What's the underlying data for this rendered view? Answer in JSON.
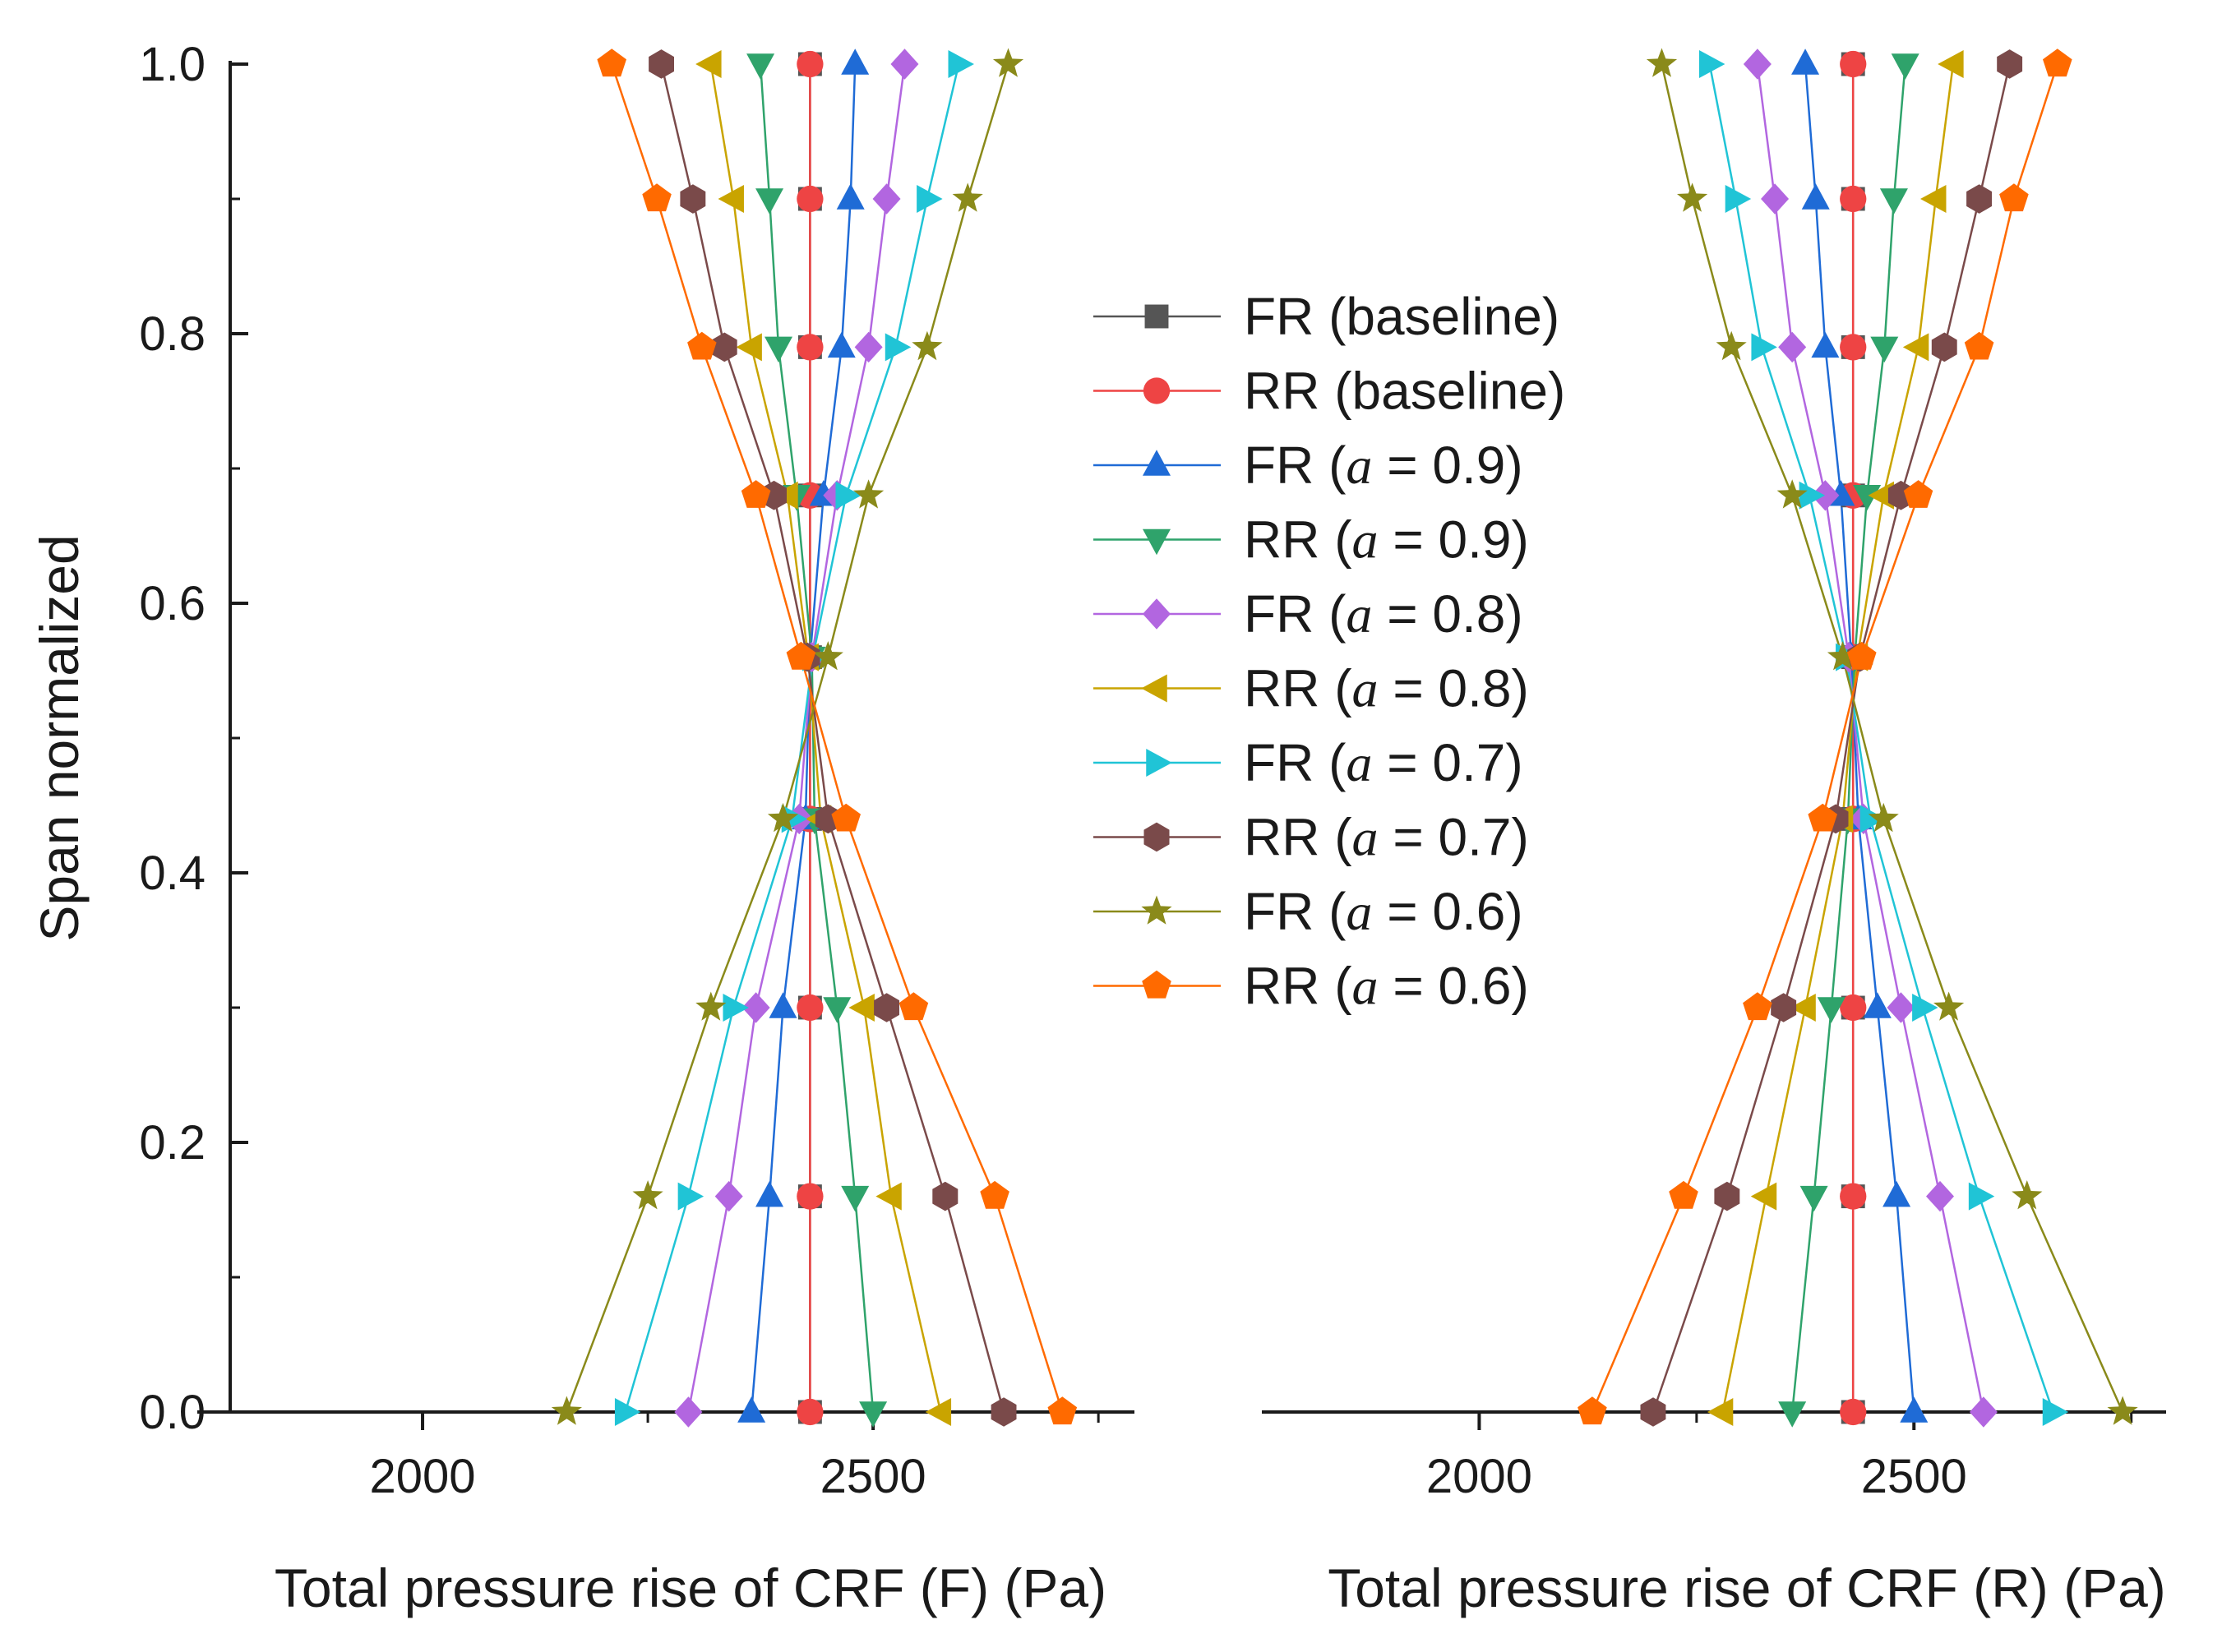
{
  "chart_data": {
    "type": "line",
    "ylabel": "Span normalized",
    "ylim": [
      0,
      1
    ],
    "yticks": [
      "0.0",
      "0.2",
      "0.4",
      "0.6",
      "0.8",
      "1.0"
    ],
    "span": [
      0.0,
      0.16,
      0.3,
      0.44,
      0.56,
      0.68,
      0.79,
      0.9,
      1.0
    ],
    "panels": [
      {
        "id": "F",
        "xlabel": "Total pressure rise of CRF (F) (Pa)",
        "xlim": [
          1750,
          2790
        ],
        "xticks": [
          "2000",
          "2500"
        ],
        "series": [
          {
            "name": "FR (baseline)",
            "marker": "square",
            "color": "#555555",
            "values": [
              2430,
              2430,
              2430,
              2430,
              2430,
              2430,
              2430,
              2430,
              2430
            ]
          },
          {
            "name": "RR (baseline)",
            "marker": "circle",
            "color": "#ee4444",
            "values": [
              2430,
              2430,
              2430,
              2430,
              2430,
              2430,
              2430,
              2430,
              2430
            ]
          },
          {
            "name": "FR (a = 0.9)",
            "marker": "triangle-up",
            "color": "#1f6bd6",
            "values": [
              2365,
              2385,
              2400,
              2425,
              2430,
              2445,
              2465,
              2475,
              2480
            ]
          },
          {
            "name": "RR (a = 0.9)",
            "marker": "triangle-down",
            "color": "#2fa36b",
            "values": [
              2500,
              2480,
              2460,
              2435,
              2432,
              2415,
              2395,
              2385,
              2375
            ]
          },
          {
            "name": "FR (a = 0.8)",
            "marker": "diamond",
            "color": "#b266e0",
            "values": [
              2295,
              2340,
              2370,
              2418,
              2432,
              2460,
              2495,
              2515,
              2535
            ]
          },
          {
            "name": "RR (a = 0.8)",
            "marker": "triangle-left",
            "color": "#c9a400",
            "values": [
              2575,
              2520,
              2490,
              2442,
              2428,
              2405,
              2365,
              2345,
              2320
            ]
          },
          {
            "name": "FR (a = 0.7)",
            "marker": "triangle-right",
            "color": "#20c4d6",
            "values": [
              2225,
              2295,
              2345,
              2410,
              2433,
              2470,
              2525,
              2560,
              2595
            ]
          },
          {
            "name": "RR (a = 0.7)",
            "marker": "hexagon",
            "color": "#7a4a4a",
            "values": [
              2645,
              2580,
              2515,
              2450,
              2427,
              2390,
              2335,
              2300,
              2265
            ]
          },
          {
            "name": "FR (a = 0.6)",
            "marker": "star",
            "color": "#8a8a1a",
            "values": [
              2160,
              2250,
              2320,
              2400,
              2450,
              2495,
              2560,
              2605,
              2650
            ]
          },
          {
            "name": "RR (a = 0.6)",
            "marker": "pentagon",
            "color": "#ff6a00",
            "values": [
              2710,
              2635,
              2545,
              2470,
              2420,
              2370,
              2310,
              2260,
              2210
            ]
          }
        ]
      },
      {
        "id": "R",
        "xlabel": "Total pressure rise of CRF (R) (Pa)",
        "xlim": [
          1750,
          2790
        ],
        "xticks": [
          "2000",
          "2500"
        ],
        "series": [
          {
            "name": "FR (baseline)",
            "marker": "square",
            "color": "#555555",
            "values": [
              2430,
              2430,
              2430,
              2430,
              2430,
              2430,
              2430,
              2430,
              2430
            ]
          },
          {
            "name": "RR (baseline)",
            "marker": "circle",
            "color": "#ee4444",
            "values": [
              2430,
              2430,
              2430,
              2430,
              2430,
              2430,
              2430,
              2430,
              2430
            ]
          },
          {
            "name": "FR (a = 0.9)",
            "marker": "triangle-up",
            "color": "#1f6bd6",
            "values": [
              2500,
              2480,
              2458,
              2436,
              2428,
              2416,
              2398,
              2387,
              2375
            ]
          },
          {
            "name": "RR (a = 0.9)",
            "marker": "triangle-down",
            "color": "#2fa36b",
            "values": [
              2360,
              2385,
              2405,
              2424,
              2432,
              2446,
              2466,
              2477,
              2490
            ]
          },
          {
            "name": "FR (a = 0.8)",
            "marker": "diamond",
            "color": "#b266e0",
            "values": [
              2580,
              2530,
              2485,
              2442,
              2425,
              2398,
              2360,
              2340,
              2320
            ]
          },
          {
            "name": "RR (a = 0.8)",
            "marker": "triangle-left",
            "color": "#c9a400",
            "values": [
              2280,
              2330,
              2375,
              2418,
              2435,
              2465,
              2505,
              2525,
              2545
            ]
          },
          {
            "name": "FR (a = 0.7)",
            "marker": "triangle-right",
            "color": "#20c4d6",
            "values": [
              2660,
              2575,
              2510,
              2450,
              2422,
              2380,
              2325,
              2295,
              2265
            ]
          },
          {
            "name": "RR (a = 0.7)",
            "marker": "hexagon",
            "color": "#7a4a4a",
            "values": [
              2200,
              2285,
              2350,
              2410,
              2438,
              2485,
              2535,
              2575,
              2610
            ]
          },
          {
            "name": "FR (a = 0.6)",
            "marker": "star",
            "color": "#8a8a1a",
            "values": [
              2740,
              2630,
              2540,
              2465,
              2418,
              2360,
              2290,
              2245,
              2210
            ]
          },
          {
            "name": "RR (a = 0.6)",
            "marker": "pentagon",
            "color": "#ff6a00",
            "values": [
              2130,
              2235,
              2320,
              2395,
              2440,
              2505,
              2575,
              2615,
              2665
            ]
          }
        ]
      }
    ],
    "legend": {
      "position": "center",
      "entries": [
        {
          "base": "FR (",
          "var": "",
          "eq": "baseline)",
          "label": "FR (baseline)"
        },
        {
          "base": "RR (",
          "var": "",
          "eq": "baseline)",
          "label": "RR (baseline)"
        },
        {
          "base": "FR (",
          "var": "a",
          "eq": " = 0.9)",
          "label": "FR (a = 0.9)"
        },
        {
          "base": "RR (",
          "var": "a",
          "eq": " = 0.9)",
          "label": "RR (a = 0.9)"
        },
        {
          "base": "FR (",
          "var": "a",
          "eq": " = 0.8)",
          "label": "FR (a = 0.8)"
        },
        {
          "base": "RR (",
          "var": "a",
          "eq": " = 0.8)",
          "label": "RR (a = 0.8)"
        },
        {
          "base": "FR (",
          "var": "a",
          "eq": " = 0.7)",
          "label": "FR (a = 0.7)"
        },
        {
          "base": "RR (",
          "var": "a",
          "eq": " = 0.7)",
          "label": "RR (a = 0.7)"
        },
        {
          "base": "FR (",
          "var": "a",
          "eq": " = 0.6)",
          "label": "FR (a = 0.6)"
        },
        {
          "base": "RR (",
          "var": "a",
          "eq": " = 0.6)",
          "label": "RR (a = 0.6)"
        }
      ]
    }
  }
}
